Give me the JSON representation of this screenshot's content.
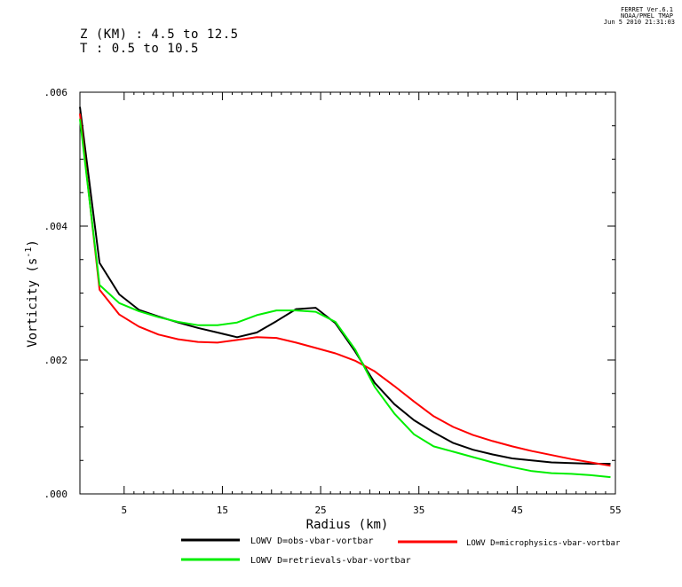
{
  "header": {
    "ferret": "FERRET Ver.6.1",
    "noaa": "NOAA/PMEL TMAP",
    "date": "Jun 5 2010 21:31:03"
  },
  "subtitle": {
    "line1": "Z (KM) : 4.5 to 12.5",
    "line2": "T : 0.5 to 10.5"
  },
  "chart_data": {
    "type": "line",
    "xlabel": "Radius (km)",
    "ylabel": "Vorticity (s",
    "ylabel_exp": "-1",
    "ylabel_close": ")",
    "xlim": [
      0.5,
      55
    ],
    "ylim": [
      0,
      0.006
    ],
    "x_ticks": [
      5,
      15,
      25,
      35,
      45,
      55
    ],
    "x_tick_labels": [
      "5",
      "15",
      "25",
      "35",
      "45",
      "55"
    ],
    "y_ticks": [
      0,
      0.002,
      0.004,
      0.006
    ],
    "y_tick_labels": [
      ".000",
      ".002",
      ".004",
      ".006"
    ],
    "grid": false,
    "legend_position": "bottom",
    "series": [
      {
        "name": "LOWV D=obs-vbar-vortbar",
        "color": "#000000",
        "x": [
          0.5,
          2.5,
          4.5,
          6.5,
          8.5,
          10.5,
          12.5,
          14.5,
          16.5,
          18.5,
          20.5,
          22.5,
          24.5,
          26.5,
          28.5,
          30.5,
          32.5,
          34.5,
          36.5,
          38.5,
          40.5,
          42.5,
          44.5,
          46.5,
          48.5,
          50.5,
          52.5,
          54.5
        ],
        "values": [
          0.00578,
          0.00345,
          0.00298,
          0.00275,
          0.00265,
          0.00256,
          0.00248,
          0.00241,
          0.00234,
          0.00241,
          0.00258,
          0.00276,
          0.00278,
          0.00255,
          0.00213,
          0.00166,
          0.00134,
          0.0011,
          0.00092,
          0.00076,
          0.00066,
          0.00059,
          0.00053,
          0.0005,
          0.00047,
          0.00046,
          0.00045,
          0.00045
        ]
      },
      {
        "name": "LOWV D=microphysics-vbar-vortbar",
        "color": "#ff0000",
        "x": [
          0.5,
          2.5,
          4.5,
          6.5,
          8.5,
          10.5,
          12.5,
          14.5,
          16.5,
          18.5,
          20.5,
          22.5,
          24.5,
          26.5,
          28.5,
          30.5,
          32.5,
          34.5,
          36.5,
          38.5,
          40.5,
          42.5,
          44.5,
          46.5,
          48.5,
          50.5,
          52.5,
          54.5
        ],
        "values": [
          0.00568,
          0.00305,
          0.00268,
          0.0025,
          0.00238,
          0.00231,
          0.00227,
          0.00226,
          0.0023,
          0.00234,
          0.00233,
          0.00226,
          0.00218,
          0.0021,
          0.00199,
          0.00183,
          0.00161,
          0.00138,
          0.00116,
          0.001,
          0.00088,
          0.00079,
          0.00071,
          0.00064,
          0.00058,
          0.00052,
          0.00047,
          0.00042
        ]
      },
      {
        "name": "LOWV D=retrievals-vbar-vortbar",
        "color": "#00ee00",
        "x": [
          0.5,
          2.5,
          4.5,
          6.5,
          8.5,
          10.5,
          12.5,
          14.5,
          16.5,
          18.5,
          20.5,
          22.5,
          24.5,
          26.5,
          28.5,
          30.5,
          32.5,
          34.5,
          36.5,
          38.5,
          40.5,
          42.5,
          44.5,
          46.5,
          48.5,
          50.5,
          52.5,
          54.5
        ],
        "values": [
          0.0056,
          0.00312,
          0.00285,
          0.00273,
          0.00264,
          0.00257,
          0.00252,
          0.00252,
          0.00256,
          0.00267,
          0.00274,
          0.00274,
          0.00272,
          0.00257,
          0.00216,
          0.0016,
          0.0012,
          0.00089,
          0.00071,
          0.00063,
          0.00055,
          0.00047,
          0.0004,
          0.00034,
          0.00031,
          0.0003,
          0.00028,
          0.00025
        ]
      }
    ]
  }
}
